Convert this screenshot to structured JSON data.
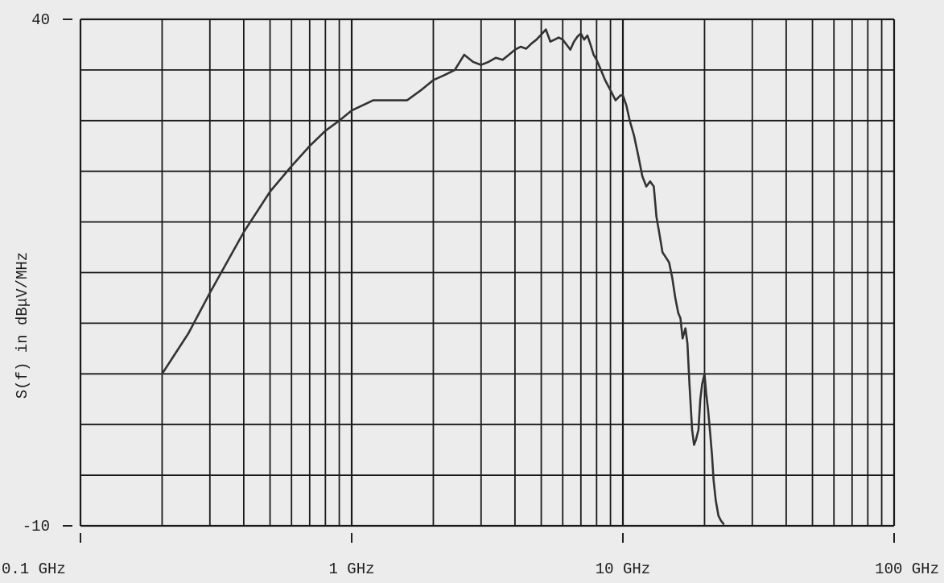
{
  "chart_data": {
    "type": "line",
    "xscale": "log",
    "xlim": [
      0.1,
      100
    ],
    "ylim": [
      -10,
      40
    ],
    "ylabel": "S(f) in dBμV/MHz",
    "xlabel": "",
    "title": "",
    "grid": true,
    "colors": {
      "line": "#333333",
      "grid": "#1a1a1a",
      "background": "#ececec"
    },
    "x_ticks": [
      {
        "value": 0.1,
        "label": "0.1 GHz"
      },
      {
        "value": 1,
        "label": "1 GHz"
      },
      {
        "value": 10,
        "label": "10 GHz"
      },
      {
        "value": 100,
        "label": "100 GHz"
      }
    ],
    "y_ticks": [
      {
        "value": 40,
        "label": "40"
      },
      {
        "value": -10,
        "label": "-10"
      }
    ],
    "series": [
      {
        "x": [
          0.2,
          0.25,
          0.3,
          0.4,
          0.5,
          0.6,
          0.7,
          0.8,
          0.9,
          1.0,
          1.2,
          1.4,
          1.6,
          1.8,
          2.0,
          2.2,
          2.4,
          2.6,
          2.8,
          3.0,
          3.2,
          3.4,
          3.6,
          3.8,
          4.0,
          4.2,
          4.4,
          4.6,
          4.8,
          5.0,
          5.2,
          5.4,
          5.6,
          5.8,
          6.0,
          6.2,
          6.4,
          6.6,
          6.8,
          7.0,
          7.2,
          7.4,
          7.6,
          7.8,
          8.0,
          8.3,
          8.6,
          9.0,
          9.4,
          9.8,
          10.0,
          10.3,
          10.6,
          11.0,
          11.4,
          11.8,
          12.2,
          12.6,
          13.0,
          13.3,
          13.6,
          14.0,
          14.4,
          14.8,
          15.2,
          15.6,
          16.0,
          16.3,
          16.6,
          17.0,
          17.3,
          17.6,
          18.0,
          18.3,
          18.6,
          19.0,
          19.3,
          19.6,
          20.0,
          20.3,
          20.6,
          21.0,
          21.3,
          21.6,
          22.0,
          22.5,
          23.0,
          23.5
        ],
        "values": [
          5.0,
          9.0,
          13.0,
          19.0,
          23.0,
          25.5,
          27.5,
          29.0,
          30.0,
          31.0,
          32.0,
          32.0,
          32.0,
          33.0,
          34.0,
          34.5,
          35.0,
          36.5,
          35.8,
          35.5,
          35.8,
          36.2,
          36.0,
          36.5,
          37.0,
          37.3,
          37.1,
          37.6,
          38.0,
          38.5,
          39.0,
          37.8,
          38.0,
          38.2,
          38.0,
          37.5,
          37.0,
          37.8,
          38.3,
          38.6,
          38.0,
          38.4,
          37.5,
          36.5,
          36.0,
          35.0,
          34.0,
          33.0,
          32.0,
          32.5,
          32.5,
          31.5,
          30.0,
          28.5,
          26.5,
          24.5,
          23.5,
          24.0,
          23.5,
          20.5,
          19.0,
          17.0,
          16.5,
          16.0,
          14.5,
          12.5,
          11.0,
          10.5,
          8.5,
          9.5,
          8.0,
          4.0,
          -0.5,
          -2.0,
          -1.5,
          -0.5,
          2.5,
          4.0,
          5.0,
          3.0,
          1.5,
          -1.0,
          -3.0,
          -5.5,
          -7.5,
          -9.0,
          -9.5,
          -9.8
        ]
      }
    ]
  }
}
